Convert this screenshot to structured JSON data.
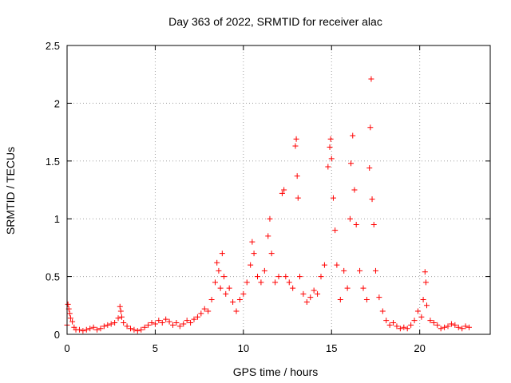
{
  "chart_data": {
    "type": "scatter",
    "title": "Day 363 of 2022, SRMTID for receiver alac",
    "xlabel": "GPS time / hours",
    "ylabel": "SRMTID / TECUs",
    "xlim": [
      0,
      24
    ],
    "ylim": [
      0,
      2.5
    ],
    "xticks": [
      0,
      5,
      10,
      15,
      20
    ],
    "xtick_labels": [
      "0",
      "5",
      "10",
      "15",
      "20"
    ],
    "yticks": [
      0,
      0.5,
      1,
      1.5,
      2,
      2.5
    ],
    "ytick_labels": [
      "0",
      "0.5",
      "1",
      "1.5",
      "2",
      "2.5"
    ],
    "grid": true,
    "marker": "+",
    "color": "#ff0000",
    "series": [
      {
        "name": "SRMTID",
        "points": [
          [
            0.0,
            0.08
          ],
          [
            0.05,
            0.26
          ],
          [
            0.1,
            0.22
          ],
          [
            0.15,
            0.18
          ],
          [
            0.2,
            0.14
          ],
          [
            0.3,
            0.11
          ],
          [
            0.4,
            0.06
          ],
          [
            0.5,
            0.04
          ],
          [
            0.7,
            0.04
          ],
          [
            0.9,
            0.03
          ],
          [
            1.1,
            0.04
          ],
          [
            1.3,
            0.05
          ],
          [
            1.5,
            0.06
          ],
          [
            1.7,
            0.04
          ],
          [
            1.9,
            0.05
          ],
          [
            2.1,
            0.07
          ],
          [
            2.3,
            0.08
          ],
          [
            2.5,
            0.09
          ],
          [
            2.7,
            0.1
          ],
          [
            2.9,
            0.14
          ],
          [
            3.0,
            0.24
          ],
          [
            3.05,
            0.2
          ],
          [
            3.1,
            0.15
          ],
          [
            3.2,
            0.1
          ],
          [
            3.4,
            0.07
          ],
          [
            3.6,
            0.05
          ],
          [
            3.8,
            0.04
          ],
          [
            4.0,
            0.03
          ],
          [
            4.2,
            0.04
          ],
          [
            4.4,
            0.06
          ],
          [
            4.6,
            0.08
          ],
          [
            4.8,
            0.1
          ],
          [
            5.0,
            0.09
          ],
          [
            5.2,
            0.12
          ],
          [
            5.4,
            0.1
          ],
          [
            5.6,
            0.13
          ],
          [
            5.8,
            0.11
          ],
          [
            6.0,
            0.08
          ],
          [
            6.2,
            0.1
          ],
          [
            6.4,
            0.07
          ],
          [
            6.6,
            0.09
          ],
          [
            6.8,
            0.12
          ],
          [
            7.0,
            0.1
          ],
          [
            7.2,
            0.13
          ],
          [
            7.4,
            0.15
          ],
          [
            7.6,
            0.18
          ],
          [
            7.8,
            0.22
          ],
          [
            8.0,
            0.2
          ],
          [
            8.2,
            0.3
          ],
          [
            8.4,
            0.45
          ],
          [
            8.5,
            0.62
          ],
          [
            8.6,
            0.55
          ],
          [
            8.7,
            0.4
          ],
          [
            8.8,
            0.7
          ],
          [
            8.9,
            0.5
          ],
          [
            9.0,
            0.35
          ],
          [
            9.2,
            0.4
          ],
          [
            9.4,
            0.28
          ],
          [
            9.6,
            0.2
          ],
          [
            9.8,
            0.3
          ],
          [
            10.0,
            0.35
          ],
          [
            10.2,
            0.45
          ],
          [
            10.4,
            0.6
          ],
          [
            10.5,
            0.8
          ],
          [
            10.6,
            0.7
          ],
          [
            10.8,
            0.5
          ],
          [
            11.0,
            0.45
          ],
          [
            11.2,
            0.55
          ],
          [
            11.4,
            0.85
          ],
          [
            11.5,
            1.0
          ],
          [
            11.6,
            0.7
          ],
          [
            11.8,
            0.45
          ],
          [
            12.0,
            0.5
          ],
          [
            12.2,
            1.22
          ],
          [
            12.3,
            1.25
          ],
          [
            12.4,
            0.5
          ],
          [
            12.6,
            0.45
          ],
          [
            12.8,
            0.4
          ],
          [
            12.95,
            1.63
          ],
          [
            13.0,
            1.69
          ],
          [
            13.05,
            1.37
          ],
          [
            13.1,
            1.18
          ],
          [
            13.2,
            0.5
          ],
          [
            13.4,
            0.35
          ],
          [
            13.6,
            0.28
          ],
          [
            13.8,
            0.32
          ],
          [
            14.0,
            0.38
          ],
          [
            14.2,
            0.35
          ],
          [
            14.4,
            0.5
          ],
          [
            14.6,
            0.6
          ],
          [
            14.8,
            1.45
          ],
          [
            14.9,
            1.62
          ],
          [
            14.95,
            1.69
          ],
          [
            15.0,
            1.52
          ],
          [
            15.1,
            1.18
          ],
          [
            15.2,
            0.9
          ],
          [
            15.3,
            0.6
          ],
          [
            15.5,
            0.3
          ],
          [
            15.7,
            0.55
          ],
          [
            15.9,
            0.4
          ],
          [
            16.05,
            1.0
          ],
          [
            16.1,
            1.48
          ],
          [
            16.2,
            1.72
          ],
          [
            16.3,
            1.25
          ],
          [
            16.4,
            0.95
          ],
          [
            16.6,
            0.55
          ],
          [
            16.8,
            0.4
          ],
          [
            17.0,
            0.3
          ],
          [
            17.15,
            1.44
          ],
          [
            17.2,
            1.79
          ],
          [
            17.25,
            2.21
          ],
          [
            17.3,
            1.17
          ],
          [
            17.4,
            0.95
          ],
          [
            17.5,
            0.55
          ],
          [
            17.7,
            0.32
          ],
          [
            17.9,
            0.2
          ],
          [
            18.1,
            0.12
          ],
          [
            18.3,
            0.08
          ],
          [
            18.5,
            0.1
          ],
          [
            18.7,
            0.07
          ],
          [
            18.9,
            0.05
          ],
          [
            19.1,
            0.06
          ],
          [
            19.3,
            0.05
          ],
          [
            19.5,
            0.08
          ],
          [
            19.7,
            0.12
          ],
          [
            19.9,
            0.2
          ],
          [
            20.1,
            0.15
          ],
          [
            20.2,
            0.3
          ],
          [
            20.3,
            0.54
          ],
          [
            20.35,
            0.45
          ],
          [
            20.4,
            0.25
          ],
          [
            20.6,
            0.12
          ],
          [
            20.8,
            0.1
          ],
          [
            21.0,
            0.08
          ],
          [
            21.2,
            0.05
          ],
          [
            21.4,
            0.06
          ],
          [
            21.6,
            0.07
          ],
          [
            21.8,
            0.09
          ],
          [
            22.0,
            0.08
          ],
          [
            22.2,
            0.06
          ],
          [
            22.4,
            0.05
          ],
          [
            22.6,
            0.07
          ],
          [
            22.8,
            0.06
          ]
        ]
      }
    ]
  }
}
